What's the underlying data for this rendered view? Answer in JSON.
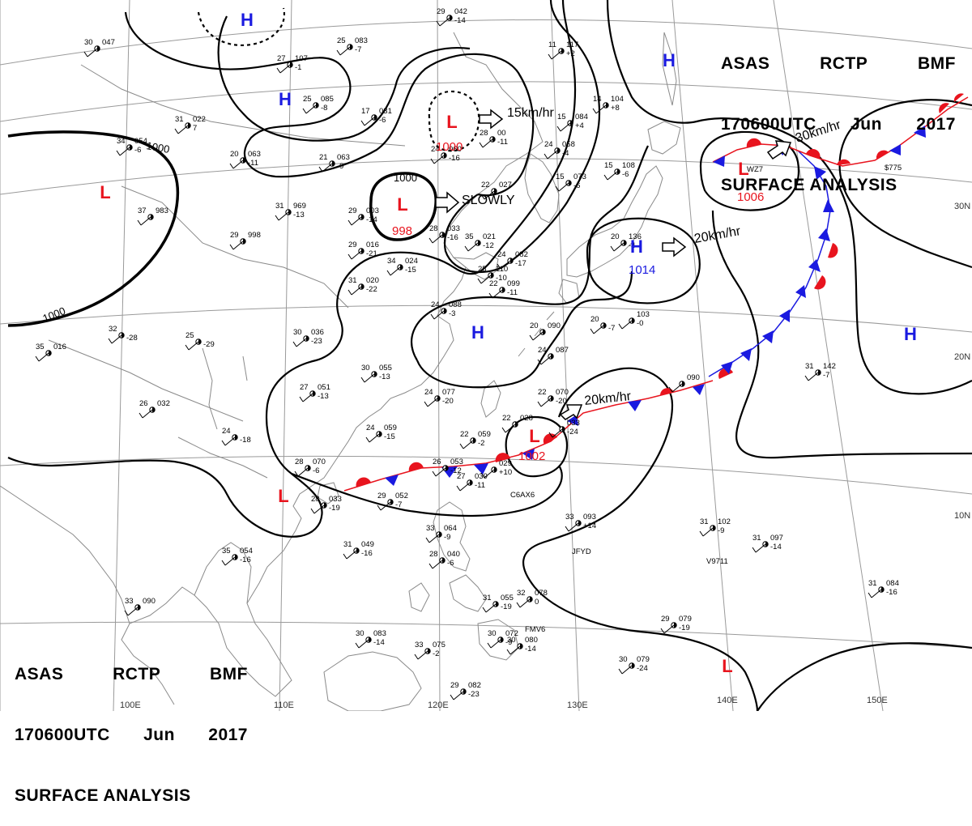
{
  "title": {
    "line1": [
      "ASAS",
      "RCTP",
      "BMF"
    ],
    "line2": [
      "170600UTC",
      "Jun",
      "2017"
    ],
    "line3": "SURFACE ANALYSIS"
  },
  "colors": {
    "low": "#e8141e",
    "high": "#1a1ae0",
    "warm_front": "#e8141e",
    "cold_front": "#1a1ae0",
    "isobar": "#000000",
    "coast": "#8a8a8a",
    "grid": "#9a9a9a"
  },
  "pressure_systems": [
    {
      "type": "H",
      "pressure": ""
    },
    {
      "type": "H",
      "pressure": ""
    },
    {
      "type": "H",
      "pressure": ""
    },
    {
      "type": "H",
      "pressure": ""
    },
    {
      "type": "H",
      "pressure": "1014"
    },
    {
      "type": "H",
      "pressure": ""
    },
    {
      "type": "L",
      "pressure": ""
    },
    {
      "type": "L",
      "pressure": "1000"
    },
    {
      "type": "L",
      "pressure": "998"
    },
    {
      "type": "L",
      "pressure": "1006"
    },
    {
      "type": "L",
      "pressure": "1002"
    },
    {
      "type": "L",
      "pressure": ""
    },
    {
      "type": "L",
      "pressure": ""
    }
  ],
  "movements": [
    "15km/hr",
    "SLOWLY",
    "30km/hr",
    "20km/hr",
    "20km/hr"
  ],
  "isobar_labels": [
    "1000",
    "1000",
    "1000"
  ],
  "lat_labels": [
    "30N",
    "20N",
    "10N"
  ],
  "lon_labels": [
    "100E",
    "110E",
    "120E",
    "130E",
    "140E",
    "150E"
  ],
  "station_plots": [
    {
      "t": "30",
      "p": "047",
      "w": ""
    },
    {
      "t": "29",
      "p": "042",
      "w": "-14"
    },
    {
      "t": "25",
      "p": "083",
      "w": "-7"
    },
    {
      "t": "27",
      "p": "107",
      "w": "-1"
    },
    {
      "t": "11",
      "p": "117",
      "w": "+2"
    },
    {
      "t": "25",
      "p": "085",
      "w": "-8"
    },
    {
      "t": "31",
      "p": "022",
      "w": "7"
    },
    {
      "t": "17",
      "p": "031",
      "w": "-6"
    },
    {
      "t": "34",
      "p": "054",
      "w": "-6"
    },
    {
      "t": "20",
      "p": "063",
      "w": "-11"
    },
    {
      "t": "21",
      "p": "063",
      "w": "-9"
    },
    {
      "t": "28",
      "p": "00",
      "w": "-11"
    },
    {
      "t": "24",
      "p": "060",
      "w": "-16"
    },
    {
      "t": "15",
      "p": "084",
      "w": "+4"
    },
    {
      "t": "24",
      "p": "058",
      "w": "-4"
    },
    {
      "t": "14",
      "p": "104",
      "w": "+8"
    },
    {
      "t": "15",
      "p": "108",
      "w": "-6"
    },
    {
      "t": "15",
      "p": "073",
      "w": "-6"
    },
    {
      "t": "22",
      "p": "027",
      "w": ""
    },
    {
      "t": "29",
      "p": "003",
      "w": "-14"
    },
    {
      "t": "31",
      "p": "969",
      "w": "-13"
    },
    {
      "t": "37",
      "p": "983",
      "w": ""
    },
    {
      "t": "29",
      "p": "998",
      "w": ""
    },
    {
      "t": "28",
      "p": "033",
      "w": "-16"
    },
    {
      "t": "35",
      "p": "021",
      "w": "-12"
    },
    {
      "t": "29",
      "p": "016",
      "w": "-21"
    },
    {
      "t": "34",
      "p": "024",
      "w": "-15"
    },
    {
      "t": "24",
      "p": "082",
      "w": "-17"
    },
    {
      "t": "25",
      "p": "110",
      "w": "-10"
    },
    {
      "t": "22",
      "p": "099",
      "w": "-11"
    },
    {
      "t": "31",
      "p": "020",
      "w": "-22"
    },
    {
      "t": "24",
      "p": "088",
      "w": "-3"
    },
    {
      "t": "20",
      "p": "136",
      "w": "-4"
    },
    {
      "t": "30",
      "p": "036",
      "w": "-23"
    },
    {
      "t": "25",
      "p": "",
      "w": "-29"
    },
    {
      "t": "32",
      "p": "",
      "w": "-28"
    },
    {
      "t": "35",
      "p": "016",
      "w": ""
    },
    {
      "t": "20",
      "p": "090",
      "w": ""
    },
    {
      "t": "24",
      "p": "087",
      "w": ""
    },
    {
      "t": "20",
      "p": "",
      "w": "-7"
    },
    {
      "t": "",
      "p": "103",
      "w": "-0"
    },
    {
      "t": "30",
      "p": "055",
      "w": "-13"
    },
    {
      "t": "27",
      "p": "051",
      "w": "-13"
    },
    {
      "t": "24",
      "p": "077",
      "w": "-20"
    },
    {
      "t": "22",
      "p": "070",
      "w": "-20"
    },
    {
      "t": "26",
      "p": "032",
      "w": ""
    },
    {
      "t": "24",
      "p": "059",
      "w": "-15"
    },
    {
      "t": "22",
      "p": "059",
      "w": "-2"
    },
    {
      "t": "22",
      "p": "028",
      "w": ""
    },
    {
      "t": "",
      "p": "033",
      "w": "-24"
    },
    {
      "t": "",
      "p": "090",
      "w": ""
    },
    {
      "t": "31",
      "p": "142",
      "w": "-7"
    },
    {
      "t": "24",
      "p": "",
      "w": "-18"
    },
    {
      "t": "28",
      "p": "070",
      "w": "-6"
    },
    {
      "t": "26",
      "p": "053",
      "w": "-12"
    },
    {
      "t": "",
      "p": "029",
      "w": "+10"
    },
    {
      "t": "27",
      "p": "039",
      "w": "-11"
    },
    {
      "t": "",
      "p": "",
      "w": "C6AX6"
    },
    {
      "t": "28",
      "p": "033",
      "w": "-19"
    },
    {
      "t": "29",
      "p": "052",
      "w": "-7"
    },
    {
      "t": "33",
      "p": "093",
      "w": "+14"
    },
    {
      "t": "31",
      "p": "102",
      "w": "-9"
    },
    {
      "t": "31",
      "p": "097",
      "w": "-14"
    },
    {
      "t": "33",
      "p": "064",
      "w": "-9"
    },
    {
      "t": "28",
      "p": "040",
      "w": "-6"
    },
    {
      "t": "31",
      "p": "049",
      "w": "-16"
    },
    {
      "t": "35",
      "p": "054",
      "w": "-16"
    },
    {
      "t": "31",
      "p": "055",
      "w": "-19"
    },
    {
      "t": "32",
      "p": "078",
      "w": "0"
    },
    {
      "t": "31",
      "p": "084",
      "w": "-16"
    },
    {
      "t": "33",
      "p": "090",
      "w": ""
    },
    {
      "t": "29",
      "p": "079",
      "w": "-19"
    },
    {
      "t": "30",
      "p": "083",
      "w": "-14"
    },
    {
      "t": "33",
      "p": "075",
      "w": "-2"
    },
    {
      "t": "30",
      "p": "072",
      "w": "-9"
    },
    {
      "t": "30",
      "p": "080",
      "w": "-14"
    },
    {
      "t": "30",
      "p": "079",
      "w": "-24"
    },
    {
      "t": "29",
      "p": "082",
      "w": "-23"
    },
    {
      "t": "",
      "p": "",
      "w": "JFYD"
    },
    {
      "t": "",
      "p": "",
      "w": "V9711"
    },
    {
      "t": "",
      "p": "",
      "w": "FMV6"
    },
    {
      "t": "",
      "p": "",
      "w": "$775"
    },
    {
      "t": "",
      "p": "",
      "w": "WZ7"
    }
  ]
}
